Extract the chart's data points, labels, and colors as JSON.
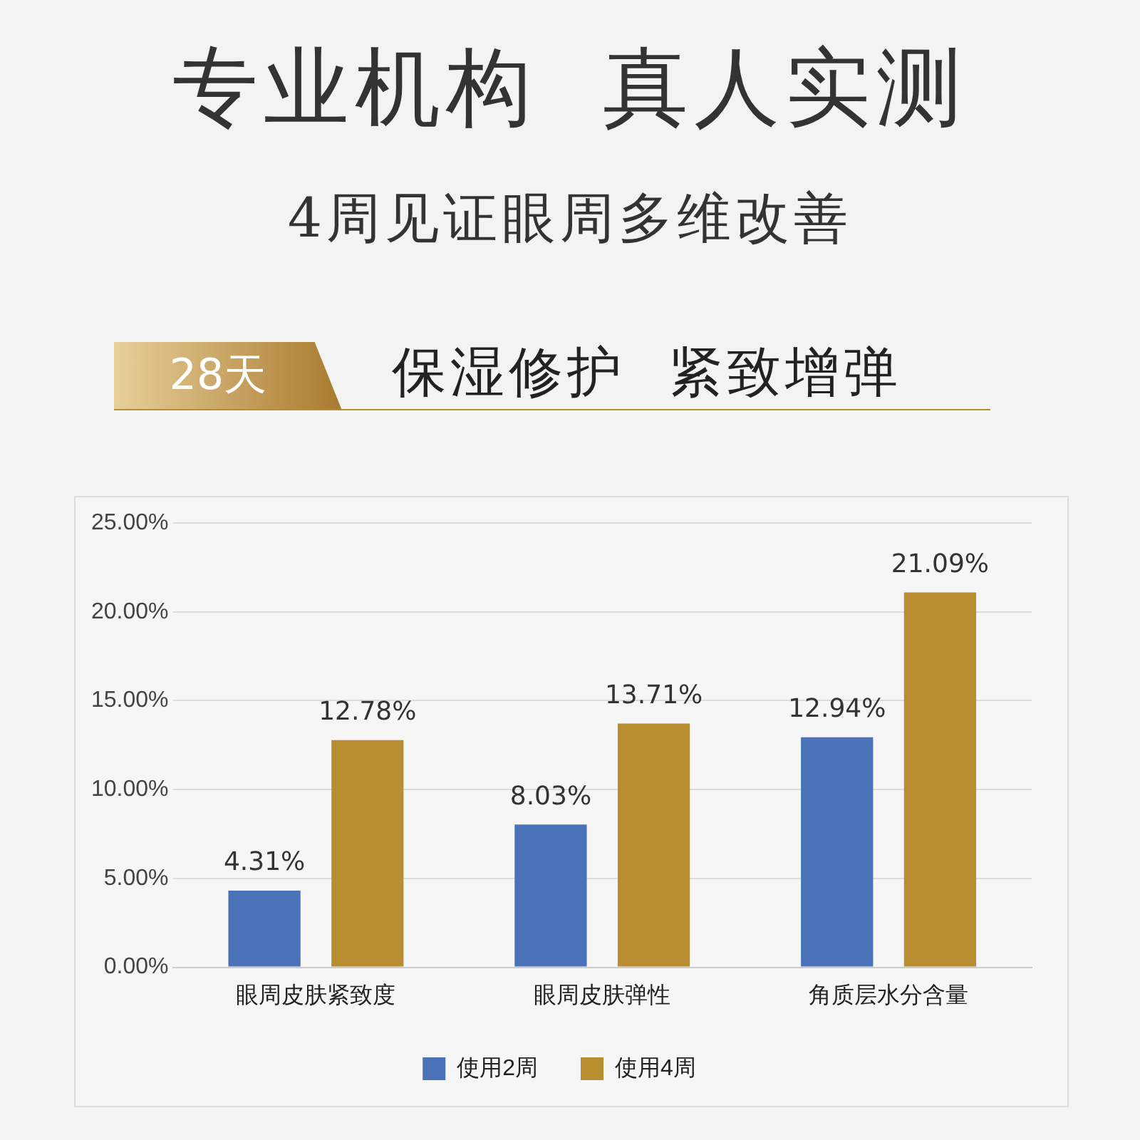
{
  "chart_data": {
    "type": "bar",
    "title": "专业机构  真人实测",
    "subtitle": "4周见证眼周多维改善",
    "annotations": [
      "28天",
      "保湿修护  紧致增弹"
    ],
    "categories": [
      "眼周皮肤紧致度",
      "眼周皮肤弹性",
      "角质层水分含量"
    ],
    "series": [
      {
        "name": "使用2周",
        "color": "#4a72b8",
        "values": [
          4.31,
          8.03,
          12.94
        ],
        "value_labels": [
          "4.31%",
          "8.03%",
          "12.94%"
        ]
      },
      {
        "name": "使用4周",
        "color": "#b88e30",
        "values": [
          12.78,
          13.71,
          21.09
        ],
        "value_labels": [
          "12.78%",
          "13.71%",
          "21.09%"
        ]
      }
    ],
    "ylim": [
      0,
      25
    ],
    "yticks": [
      {
        "value": 0,
        "label": "0.00%"
      },
      {
        "value": 5,
        "label": "5.00%"
      },
      {
        "value": 10,
        "label": "10.00%"
      },
      {
        "value": 15,
        "label": "15.00%"
      },
      {
        "value": 20,
        "label": "20.00%"
      },
      {
        "value": 25,
        "label": "25.00%"
      }
    ],
    "grid": "y",
    "legend": "bottom"
  }
}
